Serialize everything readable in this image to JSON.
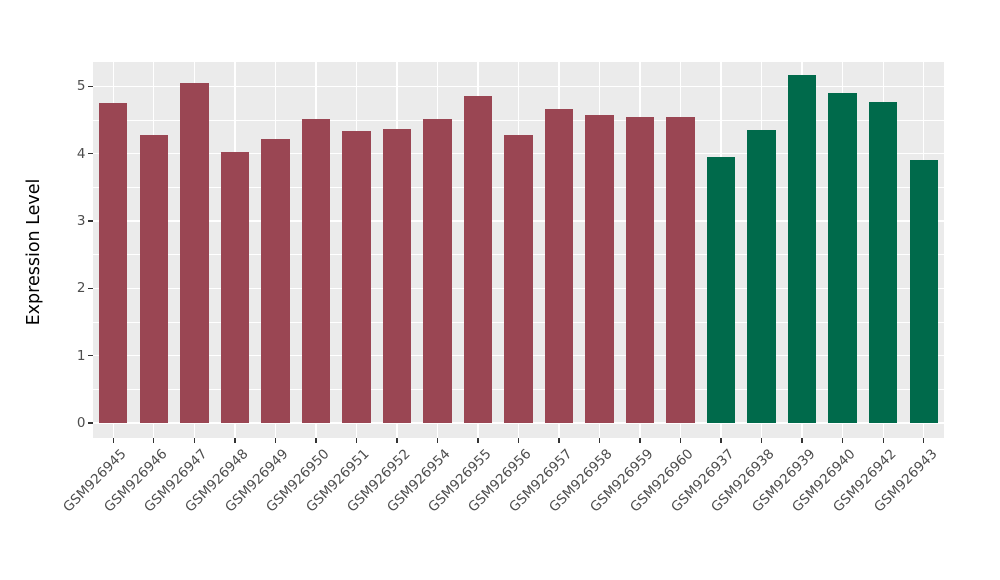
{
  "chart_data": {
    "type": "bar",
    "ylabel": "Expression Level",
    "xlabel": "",
    "categories": [
      "GSM926945",
      "GSM926946",
      "GSM926947",
      "GSM926948",
      "GSM926949",
      "GSM926950",
      "GSM926951",
      "GSM926952",
      "GSM926954",
      "GSM926955",
      "GSM926956",
      "GSM926957",
      "GSM926958",
      "GSM926959",
      "GSM926960",
      "GSM926937",
      "GSM926938",
      "GSM926939",
      "GSM926940",
      "GSM926942",
      "GSM926943"
    ],
    "values": [
      4.75,
      4.27,
      5.05,
      4.02,
      4.21,
      4.51,
      4.34,
      4.37,
      4.52,
      4.86,
      4.28,
      4.66,
      4.57,
      4.55,
      4.55,
      3.95,
      4.35,
      5.17,
      4.9,
      4.77,
      3.9
    ],
    "groups": [
      0,
      0,
      0,
      0,
      0,
      0,
      0,
      0,
      0,
      0,
      0,
      0,
      0,
      0,
      0,
      1,
      1,
      1,
      1,
      1,
      1
    ],
    "palette": [
      "#9A4653",
      "#006A4B"
    ],
    "yticks": [
      0,
      1,
      2,
      3,
      4,
      5
    ],
    "ylim": [
      -0.22,
      5.36
    ],
    "grid": "white major+minor horizontal, white vertical at category centers",
    "legend": "none",
    "colors": {
      "panel_bg": "#EBEBEB",
      "grid": "#FFFFFF",
      "tick": "#333333",
      "tick_label": "#4D4D4D",
      "axis_title": "#000000"
    }
  }
}
